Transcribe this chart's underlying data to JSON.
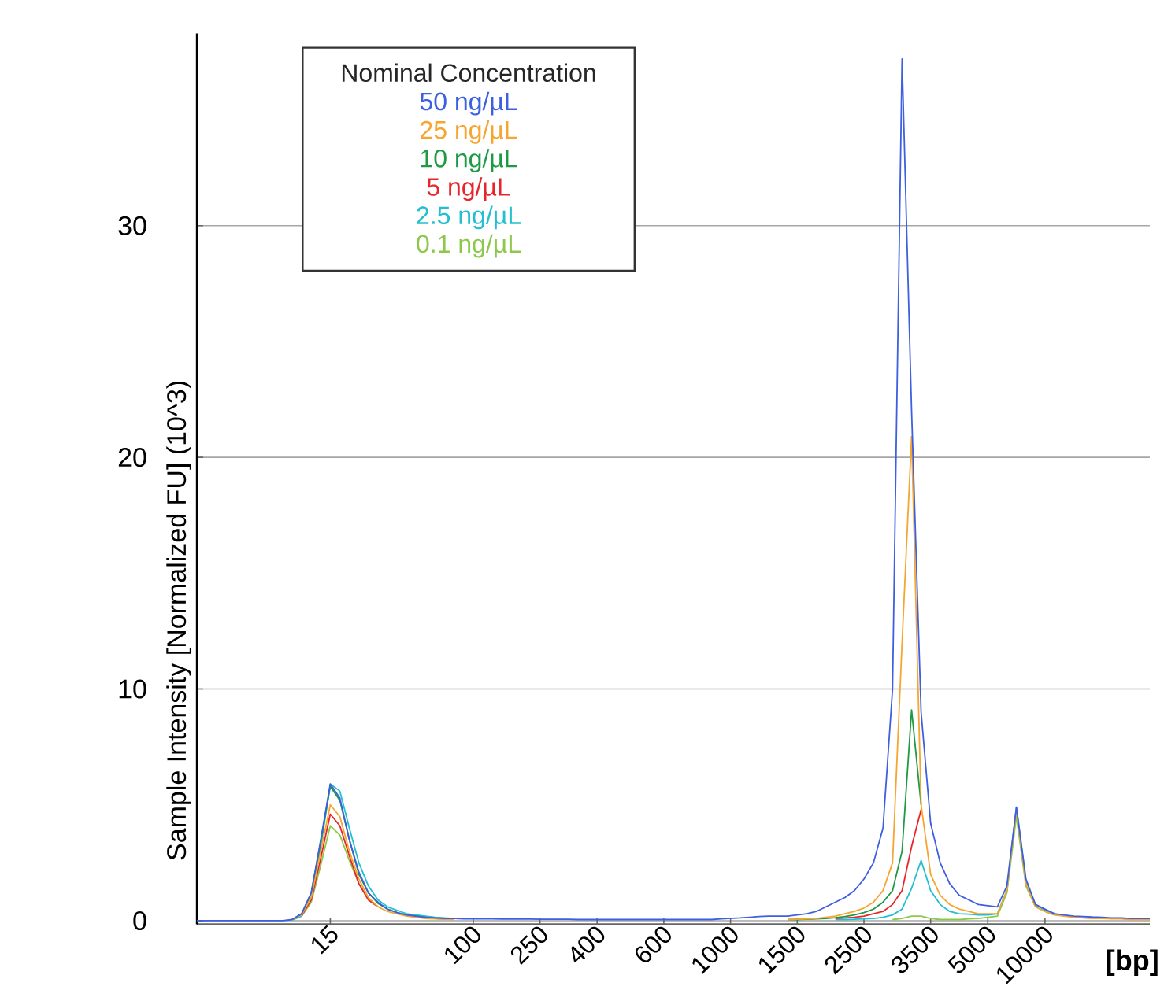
{
  "chart_data": {
    "type": "line",
    "ylabel": "Sample Intensity [Normalized FU] (10^3)",
    "xlabel": "[bp]",
    "legend_title": "Nominal Concentration",
    "legend": "top left",
    "grid": "y",
    "ylim": [
      -0.15,
      38.3
    ],
    "yticks": [
      0,
      10,
      20,
      30
    ],
    "categories": [
      null,
      null,
      null,
      null,
      null,
      null,
      null,
      null,
      null,
      null,
      null,
      null,
      null,
      null,
      "15",
      null,
      null,
      null,
      null,
      null,
      null,
      null,
      null,
      null,
      null,
      null,
      null,
      null,
      null,
      "100",
      null,
      null,
      null,
      null,
      null,
      null,
      "250",
      null,
      null,
      null,
      null,
      null,
      "400",
      null,
      null,
      null,
      null,
      null,
      null,
      "600",
      null,
      null,
      null,
      null,
      null,
      null,
      "1000",
      null,
      null,
      null,
      null,
      null,
      null,
      "1500",
      null,
      null,
      null,
      null,
      null,
      null,
      "2500",
      null,
      null,
      null,
      null,
      null,
      null,
      "3500",
      null,
      null,
      null,
      null,
      null,
      "5000",
      null,
      null,
      null,
      null,
      null,
      "10000",
      null,
      null,
      null,
      null,
      null,
      null,
      null,
      null,
      null,
      null,
      null
    ],
    "series": [
      {
        "name": "50 ng/µL",
        "color": "#3d5fe0",
        "values": [
          0,
          0,
          0,
          0,
          0,
          0,
          0,
          0,
          0,
          0,
          0.05,
          0.3,
          1.2,
          3.5,
          5.9,
          5.3,
          3.5,
          2.1,
          1.2,
          0.8,
          0.5,
          0.35,
          0.25,
          0.2,
          0.15,
          0.12,
          0.1,
          0.1,
          0.08,
          0.08,
          0.08,
          0.08,
          0.07,
          0.07,
          0.07,
          0.07,
          0.06,
          0.06,
          0.06,
          0.06,
          0.05,
          0.05,
          0.05,
          0.05,
          0.05,
          0.05,
          0.05,
          0.05,
          0.05,
          0.05,
          0.05,
          0.05,
          0.05,
          0.05,
          0.05,
          0.08,
          0.1,
          0.12,
          0.15,
          0.18,
          0.2,
          0.2,
          0.2,
          0.25,
          0.3,
          0.4,
          0.6,
          0.8,
          1.0,
          1.3,
          1.8,
          2.5,
          4.0,
          10,
          37.2,
          22,
          9,
          4.2,
          2.5,
          1.6,
          1.1,
          0.9,
          0.7,
          0.65,
          0.6,
          1.5,
          4.9,
          1.8,
          0.7,
          0.5,
          0.3,
          0.25,
          0.2,
          0.18,
          0.16,
          0.15,
          0.12,
          0.12,
          0.1,
          0.1,
          0.1
        ]
      },
      {
        "name": "25 ng/µL",
        "color": "#f7a531",
        "values": [
          null,
          null,
          null,
          null,
          null,
          null,
          null,
          null,
          null,
          null,
          0.04,
          0.25,
          1.0,
          3.0,
          5.0,
          4.5,
          3.0,
          1.8,
          1.0,
          0.6,
          0.4,
          0.3,
          0.2,
          0.15,
          0.1,
          0.08,
          0.06,
          0.05,
          null,
          null,
          null,
          null,
          null,
          null,
          null,
          null,
          null,
          null,
          null,
          null,
          null,
          null,
          null,
          null,
          null,
          null,
          null,
          null,
          null,
          null,
          null,
          null,
          null,
          null,
          null,
          null,
          null,
          null,
          null,
          null,
          null,
          null,
          0.05,
          0.06,
          0.08,
          0.1,
          0.15,
          0.2,
          0.3,
          0.4,
          0.55,
          0.8,
          1.3,
          2.5,
          12,
          20.9,
          5,
          2,
          1.1,
          0.7,
          0.5,
          0.4,
          0.3,
          0.3,
          0.3,
          1.3,
          4.8,
          1.6,
          0.6,
          0.4,
          0.25,
          0.2,
          0.15,
          0.12,
          0.1,
          0.1,
          0.08,
          0.08,
          0.05,
          0.05,
          0.05
        ]
      },
      {
        "name": "10 ng/µL",
        "color": "#1e9a45",
        "values": [
          null,
          null,
          null,
          null,
          null,
          null,
          null,
          null,
          null,
          null,
          0.05,
          0.3,
          1.2,
          3.4,
          5.8,
          5.2,
          3.5,
          2.0,
          1.2,
          0.75,
          0.5,
          0.35,
          0.25,
          0.2,
          0.15,
          0.1,
          0.08,
          0.06,
          null,
          null,
          null,
          null,
          null,
          null,
          null,
          null,
          null,
          null,
          null,
          null,
          null,
          null,
          null,
          null,
          null,
          null,
          null,
          null,
          null,
          null,
          null,
          null,
          null,
          null,
          null,
          null,
          null,
          null,
          null,
          null,
          null,
          null,
          0.05,
          0.05,
          0.06,
          0.08,
          0.1,
          0.13,
          0.18,
          0.25,
          0.35,
          0.5,
          0.8,
          1.3,
          3,
          9.1,
          5,
          null,
          null,
          null,
          null,
          null,
          null,
          null,
          null,
          null,
          null,
          null,
          null,
          null,
          null,
          null,
          null,
          null,
          null,
          null,
          null,
          null,
          null,
          null,
          null
        ]
      },
      {
        "name": "5 ng/µL",
        "color": "#e6262b",
        "values": [
          null,
          null,
          null,
          null,
          null,
          null,
          null,
          null,
          null,
          null,
          null,
          0.23,
          0.9,
          2.7,
          4.6,
          4.1,
          2.8,
          1.6,
          0.9,
          0.6,
          null,
          null,
          null,
          null,
          null,
          null,
          null,
          null,
          null,
          null,
          null,
          null,
          null,
          null,
          null,
          null,
          null,
          null,
          null,
          null,
          null,
          null,
          null,
          null,
          null,
          null,
          null,
          null,
          null,
          null,
          null,
          null,
          null,
          null,
          null,
          null,
          null,
          null,
          null,
          null,
          null,
          null,
          null,
          null,
          null,
          null,
          null,
          0.1,
          0.12,
          0.15,
          0.2,
          0.3,
          0.4,
          0.7,
          1.3,
          3.2,
          4.8,
          null,
          null,
          null,
          null,
          null,
          null,
          null,
          null,
          null,
          null,
          null,
          null,
          null,
          null,
          null,
          null,
          null,
          null,
          null,
          null,
          null,
          null,
          null,
          null
        ]
      },
      {
        "name": "2.5 ng/µL",
        "color": "#22bfd0",
        "values": [
          null,
          null,
          null,
          null,
          null,
          null,
          null,
          null,
          null,
          null,
          0.03,
          0.2,
          1.0,
          3.2,
          5.9,
          5.6,
          4.0,
          2.5,
          1.5,
          0.9,
          0.6,
          0.45,
          0.3,
          0.25,
          0.2,
          0.15,
          0.12,
          0.1,
          null,
          null,
          null,
          null,
          null,
          null,
          null,
          null,
          null,
          null,
          null,
          null,
          null,
          null,
          null,
          null,
          null,
          null,
          null,
          null,
          null,
          null,
          null,
          null,
          null,
          null,
          null,
          null,
          null,
          null,
          null,
          null,
          null,
          null,
          null,
          null,
          null,
          null,
          null,
          0.05,
          0.05,
          0.06,
          0.08,
          0.1,
          0.15,
          0.25,
          0.5,
          1.4,
          2.6,
          1.3,
          0.7,
          0.4,
          0.3,
          0.28,
          0.25,
          0.25,
          0.3,
          1.3,
          4.9,
          1.7,
          0.7,
          0.45,
          0.3,
          null,
          null,
          null,
          null,
          null,
          null,
          null,
          null,
          null,
          null
        ]
      },
      {
        "name": "0.1 ng/µL",
        "color": "#8cc84b",
        "values": [
          null,
          null,
          null,
          null,
          null,
          null,
          null,
          null,
          null,
          null,
          null,
          0.2,
          0.8,
          2.4,
          4.1,
          3.7,
          2.6,
          1.6,
          0.9,
          0.6,
          null,
          null,
          null,
          null,
          null,
          null,
          null,
          null,
          null,
          null,
          null,
          null,
          null,
          null,
          null,
          null,
          null,
          null,
          null,
          null,
          null,
          null,
          null,
          null,
          null,
          null,
          null,
          null,
          null,
          null,
          null,
          null,
          null,
          null,
          null,
          null,
          null,
          null,
          null,
          null,
          null,
          null,
          null,
          null,
          null,
          null,
          null,
          null,
          null,
          null,
          null,
          null,
          null,
          0.05,
          0.1,
          0.2,
          0.2,
          0.1,
          0.05,
          0.05,
          0.05,
          0.08,
          0.1,
          0.15,
          0.2,
          1.2,
          4.5,
          1.5,
          0.6,
          0.4,
          0.25,
          null,
          null,
          null,
          null,
          null,
          null,
          null,
          null,
          null,
          null
        ]
      }
    ]
  }
}
